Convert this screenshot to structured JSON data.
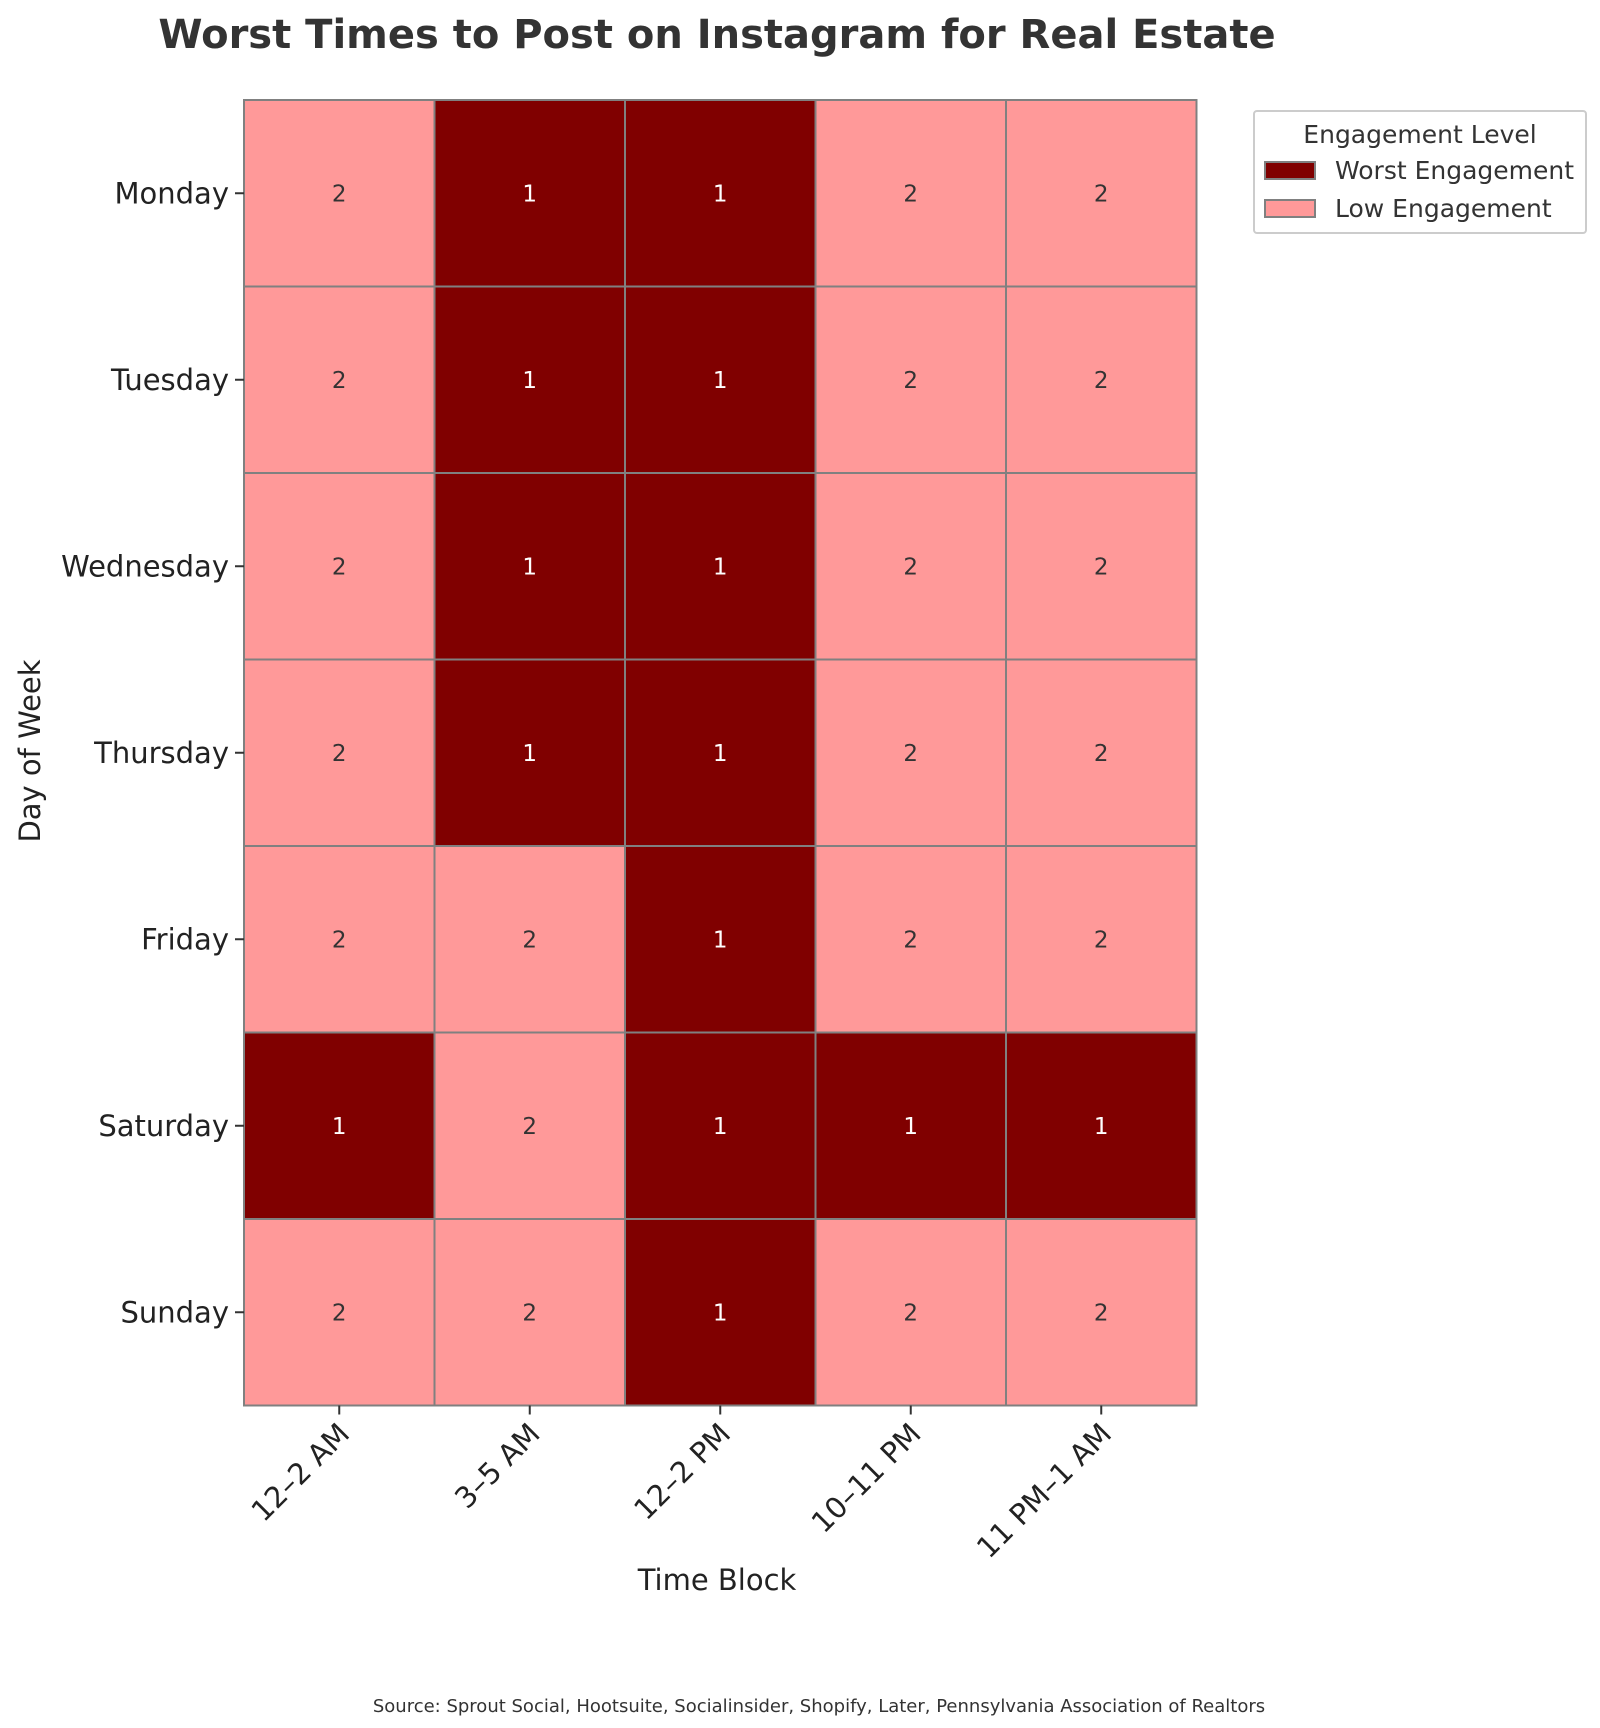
{
  "chart_data": {
    "type": "heatmap",
    "title": "Worst Times to Post on Instagram for Real Estate",
    "xlabel": "Time Block",
    "ylabel": "Day of Week",
    "x_categories": [
      "12–2 AM",
      "3–5 AM",
      "12–2 PM",
      "10–11 PM",
      "11 PM–1 AM"
    ],
    "y_categories": [
      "Monday",
      "Tuesday",
      "Wednesday",
      "Thursday",
      "Friday",
      "Saturday",
      "Sunday"
    ],
    "values": [
      [
        2,
        1,
        1,
        2,
        2
      ],
      [
        2,
        1,
        1,
        2,
        2
      ],
      [
        2,
        1,
        1,
        2,
        2
      ],
      [
        2,
        1,
        1,
        2,
        2
      ],
      [
        2,
        2,
        1,
        2,
        2
      ],
      [
        1,
        2,
        1,
        1,
        1
      ],
      [
        2,
        2,
        1,
        2,
        2
      ]
    ],
    "colors": {
      "1": "#800000",
      "2": "#ff9999"
    },
    "text_colors": {
      "1": "#ffffff",
      "2": "#333333"
    },
    "grid_color": "#808080",
    "legend": {
      "title": "Engagement Level",
      "placement": "outside-top-right",
      "entries": [
        {
          "label": "Worst Engagement",
          "value": 1
        },
        {
          "label": "Low Engagement",
          "value": 2
        }
      ]
    },
    "source": "Source: Sprout Social, Hootsuite, Socialinsider, Shopify, Later, Pennsylvania Association of Realtors"
  }
}
